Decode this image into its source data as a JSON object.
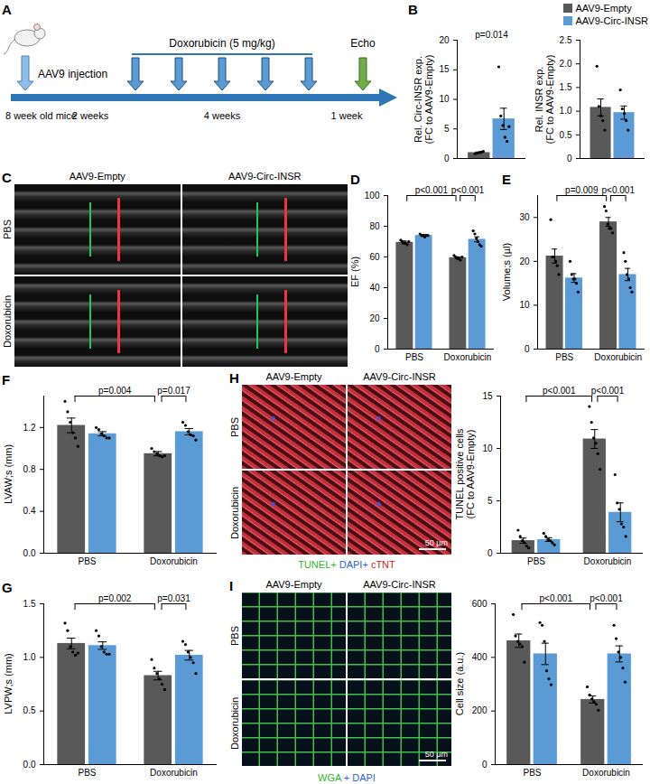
{
  "chart_data": [
    {
      "panel": "B",
      "type": "bar",
      "ylabel": "Rel. Circ-INSR exp.\n(FC to AAV9-Empty)",
      "categories": [
        null
      ],
      "series": [
        {
          "name": "AAV9-Empty",
          "color": "#595959",
          "values": [
            1.0
          ],
          "errors": [
            0.1
          ],
          "points": [
            [
              0.8,
              0.9,
              1.0,
              1.1,
              1.2
            ]
          ]
        },
        {
          "name": "AAV9-Circ-INSR",
          "color": "#5b9bd5",
          "values": [
            6.7
          ],
          "errors": [
            1.8
          ],
          "points": [
            [
              15.5,
              7.2,
              5.6,
              3.6,
              2.9,
              5.4
            ]
          ]
        }
      ],
      "ylim": [
        0,
        20
      ],
      "yticks": [
        0,
        5,
        10,
        15,
        20
      ],
      "annotations": [
        {
          "text": "p=0.014"
        }
      ]
    },
    {
      "type": "bar",
      "ylabel": "Rel. INSR exp.\n(FC to AAV9-Empty)",
      "categories": [
        null
      ],
      "series": [
        {
          "name": "AAV9-Empty",
          "color": "#595959",
          "values": [
            1.08
          ],
          "errors": [
            0.18
          ],
          "points": [
            [
              1.95,
              1.1,
              0.9,
              0.8,
              0.6
            ]
          ]
        },
        {
          "name": "AAV9-Circ-INSR",
          "color": "#5b9bd5",
          "values": [
            0.97
          ],
          "errors": [
            0.14
          ],
          "points": [
            [
              1.45,
              1.05,
              0.95,
              0.8,
              0.6
            ]
          ]
        }
      ],
      "ylim": [
        0,
        2.5
      ],
      "yticks": [
        0,
        0.5,
        {
          "value": 1,
          "label": "1.0"
        },
        1.5,
        {
          "value": 2,
          "label": "2.0"
        },
        2.5
      ],
      "legend": "top-right"
    },
    {
      "panel": "D",
      "type": "bar",
      "ylabel": "EF (%)",
      "categories": [
        "PBS",
        "Doxorubicin"
      ],
      "series": [
        {
          "name": "AAV9-Empty",
          "color": "#595959",
          "values": [
            69.5,
            59.5
          ],
          "errors": [
            0.9,
            0.6
          ],
          "points": [
            [
              71,
              70,
              69,
              69,
              68,
              70
            ],
            [
              61,
              60,
              59,
              59,
              58,
              60
            ]
          ]
        },
        {
          "name": "AAV9-Circ-INSR",
          "color": "#5b9bd5",
          "values": [
            74,
            71.5
          ],
          "errors": [
            0.6,
            1.6
          ],
          "points": [
            [
              75,
              74,
              74,
              73,
              74,
              74
            ],
            [
              77,
              75,
              72,
              70,
              68,
              67
            ]
          ]
        }
      ],
      "ylim": [
        0,
        100
      ],
      "yticks": [
        0,
        20,
        40,
        60,
        80,
        100
      ],
      "annotations": [
        {
          "text": "p<0.001",
          "from": [
            "PBS",
            "AAV9-Empty"
          ],
          "to": [
            "Doxorubicin",
            "AAV9-Empty"
          ]
        },
        {
          "text": "p<0.001",
          "from": [
            "Doxorubicin",
            "AAV9-Empty"
          ],
          "to": [
            "Doxorubicin",
            "AAV9-Circ-INSR"
          ]
        }
      ]
    },
    {
      "panel": "E",
      "type": "bar",
      "ylabel": "Volume;s (µl)",
      "categories": [
        "PBS",
        "Doxorubicin"
      ],
      "series": [
        {
          "name": "AAV9-Empty",
          "color": "#595959",
          "values": [
            21.2,
            29
          ],
          "errors": [
            1.6,
            1.0
          ],
          "points": [
            [
              29.5,
              21,
              21,
              20,
              19,
              17
            ],
            [
              32.5,
              31.5,
              28.5,
              27.5,
              27.5,
              26.5
            ]
          ]
        },
        {
          "name": "AAV9-Circ-INSR",
          "color": "#5b9bd5",
          "values": [
            16.2,
            17
          ],
          "errors": [
            1.0,
            1.4
          ],
          "points": [
            [
              20,
              17,
              16,
              16,
              15,
              13
            ],
            [
              22,
              20,
              17,
              16,
              14,
              13
            ]
          ]
        }
      ],
      "ylim": [
        0,
        35
      ],
      "yticks": [
        0,
        10,
        20,
        30
      ],
      "annotations": [
        {
          "text": "p=0.009",
          "from": [
            "PBS",
            "AAV9-Empty"
          ],
          "to": [
            "Doxorubicin",
            "AAV9-Empty"
          ]
        },
        {
          "text": "p<0.001",
          "from": [
            "Doxorubicin",
            "AAV9-Empty"
          ],
          "to": [
            "Doxorubicin",
            "AAV9-Circ-INSR"
          ]
        }
      ]
    },
    {
      "panel": "F",
      "type": "bar",
      "ylabel": "LVAW;s (mm)",
      "categories": [
        "PBS",
        "Doxorubicin"
      ],
      "series": [
        {
          "name": "AAV9-Empty",
          "color": "#595959",
          "values": [
            1.22,
            0.95
          ],
          "errors": [
            0.07,
            0.02
          ],
          "points": [
            [
              1.45,
              1.35,
              1.25,
              1.15,
              1.1,
              1.02
            ],
            [
              1.0,
              0.97,
              0.95,
              0.93,
              0.92,
              0.93
            ]
          ]
        },
        {
          "name": "AAV9-Circ-INSR",
          "color": "#5b9bd5",
          "values": [
            1.14,
            1.16
          ],
          "errors": [
            0.02,
            0.03
          ],
          "points": [
            [
              1.2,
              1.18,
              1.14,
              1.12,
              1.1,
              1.1
            ],
            [
              1.25,
              1.22,
              1.16,
              1.13,
              1.12,
              1.08
            ]
          ]
        }
      ],
      "ylim": [
        0,
        1.5
      ],
      "yticks": [
        {
          "value": 0,
          "label": "0.0"
        },
        0.4,
        0.8,
        1.2
      ],
      "annotations": [
        {
          "text": "p=0.004",
          "from": [
            "PBS",
            "AAV9-Empty"
          ],
          "to": [
            "Doxorubicin",
            "AAV9-Empty"
          ]
        },
        {
          "text": "p=0.017",
          "from": [
            "Doxorubicin",
            "AAV9-Empty"
          ],
          "to": [
            "Doxorubicin",
            "AAV9-Circ-INSR"
          ]
        }
      ]
    },
    {
      "panel": "G",
      "type": "bar",
      "ylabel": "LVPW;s (mm)",
      "categories": [
        "PBS",
        "Doxorubicin"
      ],
      "series": [
        {
          "name": "AAV9-Empty",
          "color": "#595959",
          "values": [
            1.13,
            0.83
          ],
          "errors": [
            0.05,
            0.04
          ],
          "points": [
            [
              1.32,
              1.25,
              1.1,
              1.05,
              1.02,
              1.04
            ],
            [
              0.98,
              0.9,
              0.85,
              0.8,
              0.75,
              0.7
            ]
          ]
        },
        {
          "name": "AAV9-Circ-INSR",
          "color": "#5b9bd5",
          "values": [
            1.11,
            1.02
          ],
          "errors": [
            0.035,
            0.045
          ],
          "points": [
            [
              1.25,
              1.2,
              1.1,
              1.05,
              1.03,
              1.03
            ],
            [
              1.15,
              1.12,
              1.05,
              1.0,
              0.95,
              0.85
            ]
          ]
        }
      ],
      "ylim": [
        0,
        1.5
      ],
      "yticks": [
        {
          "value": 0,
          "label": "0.0"
        },
        0.5,
        {
          "value": 1,
          "label": "1.0"
        },
        1.5
      ],
      "annotations": [
        {
          "text": "p=0.002",
          "from": [
            "PBS",
            "AAV9-Empty"
          ],
          "to": [
            "Doxorubicin",
            "AAV9-Empty"
          ]
        },
        {
          "text": "p=0.031",
          "from": [
            "Doxorubicin",
            "AAV9-Empty"
          ],
          "to": [
            "Doxorubicin",
            "AAV9-Circ-INSR"
          ]
        }
      ]
    },
    {
      "type": "bar",
      "ylabel": "TUNEL positive cells\n(FC to AAV9-Empty)",
      "categories": [
        "PBS",
        "Doxorubicin"
      ],
      "series": [
        {
          "name": "AAV9-Empty",
          "color": "#595959",
          "values": [
            1.2,
            10.9
          ],
          "errors": [
            0.25,
            0.9
          ],
          "points": [
            [
              2.2,
              1.6,
              1.2,
              1.0,
              0.7,
              0.5
            ],
            [
              14,
              12.5,
              11,
              10.5,
              9.5,
              8
            ]
          ]
        },
        {
          "name": "AAV9-Circ-INSR",
          "color": "#5b9bd5",
          "values": [
            1.3,
            3.9
          ],
          "errors": [
            0.18,
            0.9
          ],
          "points": [
            [
              1.9,
              1.6,
              1.3,
              1.2,
              1.0,
              0.8
            ],
            [
              7.5,
              4.8,
              4.2,
              2.8,
              2.5,
              1.6
            ]
          ]
        }
      ],
      "ylim": [
        0,
        15
      ],
      "yticks": [
        0,
        5,
        10,
        15
      ],
      "annotations": [
        {
          "text": "p<0.001",
          "from": [
            "PBS",
            "AAV9-Empty"
          ],
          "to": [
            "Doxorubicin",
            "AAV9-Empty"
          ]
        },
        {
          "text": "p<0.001",
          "from": [
            "Doxorubicin",
            "AAV9-Empty"
          ],
          "to": [
            "Doxorubicin",
            "AAV9-Circ-INSR"
          ]
        }
      ]
    },
    {
      "type": "bar",
      "ylabel": "Cell size (a.u.)",
      "categories": [
        "PBS",
        "Doxorubicin"
      ],
      "series": [
        {
          "name": "AAV9-Empty",
          "color": "#595959",
          "values": [
            462,
            243
          ],
          "errors": [
            25,
            13
          ],
          "points": [
            [
              560,
              480,
              460,
              450,
              440,
              382
            ],
            [
              290,
              260,
              245,
              235,
              225,
              203
            ]
          ]
        },
        {
          "name": "AAV9-Circ-INSR",
          "color": "#5b9bd5",
          "values": [
            413,
            413
          ],
          "errors": [
            40,
            30
          ],
          "points": [
            [
              530,
              520,
              460,
              350,
              320,
              298
            ],
            [
              520,
              470,
              420,
              400,
              360,
              308
            ]
          ]
        }
      ],
      "ylim": [
        0,
        600
      ],
      "yticks": [
        0,
        200,
        400,
        600
      ],
      "annotations": [
        {
          "text": "p<0.001",
          "from": [
            "PBS",
            "AAV9-Empty"
          ],
          "to": [
            "Doxorubicin",
            "AAV9-Empty"
          ]
        },
        {
          "text": "p<0.001",
          "from": [
            "Doxorubicin",
            "AAV9-Empty"
          ],
          "to": [
            "Doxorubicin",
            "AAV9-Circ-INSR"
          ]
        }
      ]
    }
  ],
  "timeline": {
    "panel": "A",
    "injection": "AAV9 injection",
    "age": "8 week old mice",
    "treatment": "Doxorubicin (5 mg/kg)",
    "endpoint": "Echo",
    "periods": [
      "2 weeks",
      "4 weeks",
      "1 week"
    ]
  },
  "images": [
    {
      "panel": "C",
      "columns": [
        "AAV9-Empty",
        "AAV9-Circ-INSR"
      ],
      "rows": [
        "PBS",
        "Doxorubicin"
      ]
    },
    {
      "panel": "H",
      "columns": [
        "AAV9-Empty",
        "AAV9-Circ-INSR"
      ],
      "rows": [
        "PBS",
        "Doxorubicin"
      ],
      "scale_bar": "50 µm",
      "caption": [
        {
          "text": "TUNEL+",
          "color": "#2fb52f"
        },
        {
          "text": "DAPI+",
          "color": "#2f5fe0"
        },
        {
          "text": "cTNT",
          "color": "#d92020"
        }
      ]
    },
    {
      "panel": "I",
      "columns": [
        "AAV9-Empty",
        "AAV9-Circ-INSR"
      ],
      "rows": [
        "PBS",
        "Doxorubicin"
      ],
      "scale_bar": "50 µm",
      "caption": [
        {
          "text": "WGA",
          "color": "#2fb52f"
        },
        {
          "text": "+ DAPI",
          "color": "#2f5fe0"
        }
      ]
    }
  ]
}
